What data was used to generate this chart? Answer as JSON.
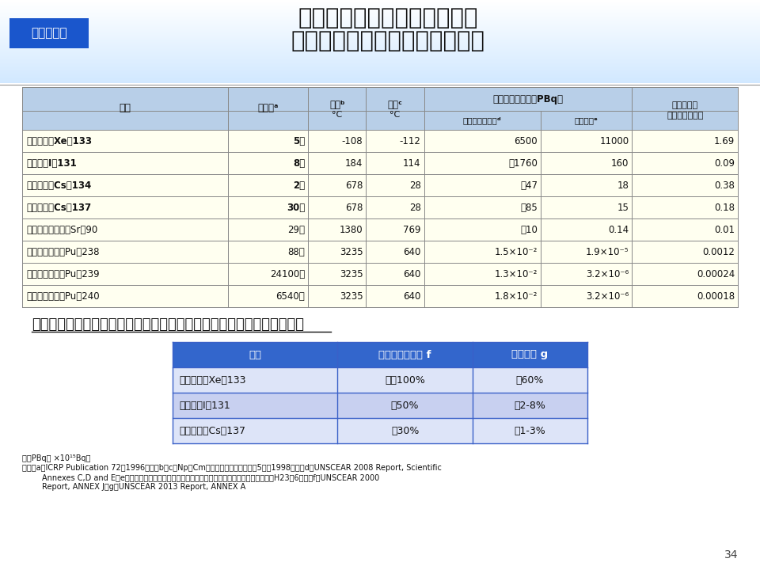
{
  "title_line1": "チェルノブイリと福島第一の",
  "title_line2": "放射性核種の推定放出量の比較",
  "badge_text": "原子力災害",
  "badge_bg": "#1a56cc",
  "badge_fg": "#ffffff",
  "header_bg": "#b8cfe8",
  "data_row_bg": "#fffff0",
  "main_table_data": [
    [
      "キセノン（Xe）133",
      "5日",
      "-108",
      "-112",
      "6500",
      "11000",
      "1.69"
    ],
    [
      "ヨウ素（I）131",
      "8日",
      "184",
      "114",
      "〜1760",
      "160",
      "0.09"
    ],
    [
      "セシウム（Cs）134",
      "2年",
      "678",
      "28",
      "〜47",
      "18",
      "0.38"
    ],
    [
      "セシウム（Cs）137",
      "30年",
      "678",
      "28",
      "〜85",
      "15",
      "0.18"
    ],
    [
      "ストロンチウム（Sr）90",
      "29年",
      "1380",
      "769",
      "〜10",
      "0.14",
      "0.01"
    ],
    [
      "プルトニウム（Pu）238",
      "88年",
      "3235",
      "640",
      "1.5×10⁻²",
      "1.9×10⁻⁵",
      "0.0012"
    ],
    [
      "プルトニウム（Pu）239",
      "24100年",
      "3235",
      "640",
      "1.3×10⁻²",
      "3.2×10⁻⁶",
      "0.00024"
    ],
    [
      "プルトニウム（Pu）240",
      "6540年",
      "3235",
      "640",
      "1.8×10⁻²",
      "3.2×10⁻⁶",
      "0.00018"
    ]
  ],
  "subtitle2": "事故発生時に炉心に蓄積されていた放射性核種の環境へ放出された割合",
  "sub_table_headers": [
    "核種",
    "チェルノブイリ f",
    "福島第一 g"
  ],
  "sub_table_data": [
    [
      "キセノン（Xe）133",
      "ほぼ100%",
      "約60%"
    ],
    [
      "ヨウ素（I）131",
      "約50%",
      "約2-8%"
    ],
    [
      "セシウム（Cs）137",
      "約30%",
      "約1-3%"
    ]
  ],
  "sub_table_header_bg": "#3366cc",
  "sub_table_header_fg": "#ffffff",
  "sub_table_row_bg1": "#dde4f8",
  "sub_table_row_bg2": "#c8d0f0",
  "footnote1": "＊：PBqは ×10¹⁵Bq。",
  "footnote2": "出典：a；ICRP Publication 72（1996年），bとc（NpとCmを除く）；理化学辞典第5版（1998年），d；UNSCEAR 2008 Report, Scientific",
  "footnote3": "        Annexes C,D and E，e；原子力安全に関するＩＡＥＡ閣僚会議に対する日本国政府の報告書（H23年6月），f；UNSCEAR 2000",
  "footnote4": "        Report, ANNEX J，g；UNSCEAR 2013 Report, ANNEX A",
  "page_number": "34"
}
